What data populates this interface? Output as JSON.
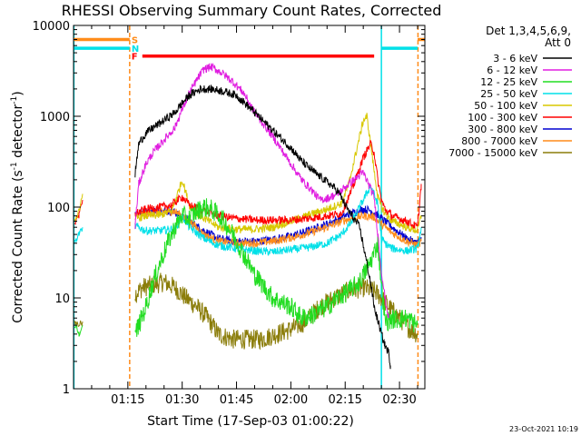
{
  "chart_data": {
    "type": "line",
    "title": "RHESSI Observing Summary Count Rates, Corrected",
    "xlabel": "Start Time (17-Sep-03 01:00:22)",
    "ylabel": "Corrected Count Rate (s⁻¹ detector⁻¹)",
    "ylabel_main": "Corrected Count Rate (s",
    "ylabel_mid": " detector",
    "ylabel_end": ")",
    "ylabel_sup": "-1",
    "footer": "23-Oct-2021 10:19",
    "y_scale": "log",
    "ylim": [
      1,
      10000
    ],
    "xlim_minutes": [
      0,
      97
    ],
    "x_tick_minutes": [
      15,
      30,
      45,
      60,
      75,
      90
    ],
    "x_tick_labels": [
      "01:15",
      "01:30",
      "01:45",
      "02:00",
      "02:15",
      "02:30"
    ],
    "y_tick_values": [
      1,
      10,
      100,
      1000,
      10000
    ],
    "y_tick_labels": [
      "1",
      "10",
      "100",
      "1000",
      "10000"
    ],
    "legend": {
      "header_line1": "Det 1,3,4,5,6,9,",
      "header_line2": "Att 0",
      "placement": "outside-right",
      "entries": [
        {
          "label": "3 - 6 keV",
          "color": "#000000"
        },
        {
          "label": "6 - 12 keV",
          "color": "#e01ee0"
        },
        {
          "label": "12 - 25 keV",
          "color": "#22dd22"
        },
        {
          "label": "25 - 50 keV",
          "color": "#00e0e8"
        },
        {
          "label": "50 - 100 keV",
          "color": "#d8c800"
        },
        {
          "label": "100 - 300 keV",
          "color": "#ff0000"
        },
        {
          "label": "300 - 800 keV",
          "color": "#0000d0"
        },
        {
          "label": "800 - 7000 keV",
          "color": "#ff8c1a"
        },
        {
          "label": "7000 - 15000 keV",
          "color": "#8b7d0a"
        }
      ]
    },
    "flags": [
      {
        "letter": "S",
        "color": "#ff8c1a",
        "value": 7000,
        "segments": [
          [
            0,
            15.5
          ],
          [
            95,
            97
          ]
        ]
      },
      {
        "letter": "N",
        "color": "#00e0e8",
        "value": 5600,
        "segments": [
          [
            0,
            15.5
          ],
          [
            85,
            95
          ]
        ]
      },
      {
        "letter": "F",
        "color": "#ff0000",
        "value": 4600,
        "segments": [
          [
            19,
            83
          ]
        ]
      }
    ],
    "vlines": [
      {
        "minute": 0.1,
        "color": "#00e0e8",
        "style": "solid"
      },
      {
        "minute": 15.5,
        "color": "#ff8c1a",
        "style": "dashed"
      },
      {
        "minute": 85,
        "color": "#00e0e8",
        "style": "solid"
      },
      {
        "minute": 95.1,
        "color": "#ff8c1a",
        "style": "dashed"
      }
    ],
    "series": [
      {
        "name": "3 - 6 keV",
        "color": "#000000",
        "x": [
          17,
          18,
          20,
          22,
          25,
          28,
          30,
          32,
          35,
          38,
          41,
          45,
          50,
          55,
          60,
          63,
          66,
          70,
          73,
          76,
          79,
          80,
          82,
          83,
          85,
          86,
          87,
          87.5
        ],
        "y": [
          230,
          500,
          650,
          750,
          900,
          1100,
          1400,
          1700,
          2000,
          2000,
          1900,
          1700,
          1100,
          700,
          450,
          320,
          250,
          190,
          150,
          90,
          60,
          38,
          15,
          8,
          4,
          3,
          2.5,
          1.8
        ]
      },
      {
        "name": "6 - 12 keV",
        "color": "#e01ee0",
        "x": [
          17,
          18,
          20,
          22,
          25,
          28,
          30,
          32,
          34,
          36,
          38,
          41,
          44,
          47,
          50,
          55,
          60,
          63,
          66,
          68,
          70,
          73,
          76,
          80,
          83,
          85,
          86,
          87
        ],
        "y": [
          62,
          180,
          300,
          400,
          550,
          750,
          1200,
          1800,
          2500,
          3300,
          3500,
          3000,
          2400,
          1800,
          1100,
          600,
          300,
          200,
          150,
          120,
          125,
          140,
          180,
          240,
          130,
          20,
          10,
          6
        ]
      },
      {
        "name": "12 - 25 keV",
        "color": "#22dd22",
        "x": [
          17,
          18,
          20,
          22,
          24,
          26,
          28,
          30,
          32,
          34,
          36,
          38,
          41,
          44,
          47,
          50,
          55,
          60,
          63,
          66,
          70,
          73,
          76,
          79,
          82,
          84,
          86,
          88,
          92,
          95
        ],
        "y": [
          4,
          5,
          8,
          15,
          25,
          40,
          60,
          80,
          75,
          90,
          100,
          95,
          75,
          50,
          30,
          18,
          10,
          8,
          6,
          6.5,
          8,
          10,
          12,
          15,
          25,
          40,
          5.5,
          5.8,
          6,
          5
        ]
      },
      {
        "name": "25 - 50 keV",
        "color": "#00e0e8",
        "x": [
          17,
          20,
          24,
          28,
          30,
          32,
          36,
          40,
          45,
          50,
          55,
          60,
          65,
          70,
          74,
          77,
          80,
          82,
          84,
          85,
          86,
          88,
          92,
          95,
          96
        ],
        "y": [
          62,
          55,
          55,
          58,
          80,
          60,
          45,
          38,
          35,
          33,
          32,
          34,
          36,
          40,
          50,
          70,
          120,
          170,
          110,
          45,
          40,
          35,
          33,
          35,
          60
        ]
      },
      {
        "name": "50 - 100 keV",
        "color": "#d8c800",
        "x": [
          17,
          20,
          24,
          27,
          28,
          30,
          32,
          35,
          40,
          45,
          50,
          55,
          60,
          65,
          70,
          74,
          76,
          78,
          80,
          81,
          82,
          83,
          84,
          85,
          86,
          88,
          92,
          95,
          96
        ],
        "y": [
          75,
          80,
          82,
          90,
          115,
          200,
          105,
          80,
          60,
          57,
          57,
          60,
          70,
          82,
          95,
          110,
          180,
          400,
          900,
          1000,
          500,
          250,
          130,
          100,
          85,
          70,
          60,
          55,
          80
        ]
      },
      {
        "name": "100 - 300 keV",
        "color": "#ff0000",
        "x": [
          17,
          20,
          24,
          27,
          30,
          32,
          35,
          40,
          45,
          50,
          55,
          60,
          65,
          70,
          74,
          77,
          80,
          82,
          83,
          84,
          85,
          86,
          88,
          92,
          95,
          96
        ],
        "y": [
          85,
          95,
          100,
          105,
          130,
          105,
          95,
          80,
          75,
          72,
          72,
          72,
          75,
          80,
          85,
          160,
          350,
          500,
          400,
          200,
          120,
          95,
          80,
          70,
          60,
          180
        ]
      },
      {
        "name": "300 - 800 keV",
        "color": "#0000d0",
        "x": [
          17,
          20,
          24,
          28,
          32,
          36,
          40,
          45,
          50,
          55,
          60,
          65,
          70,
          75,
          80,
          82,
          85,
          88,
          92,
          95,
          96
        ],
        "y": [
          85,
          90,
          92,
          88,
          70,
          55,
          45,
          42,
          42,
          44,
          48,
          55,
          65,
          80,
          95,
          92,
          75,
          60,
          45,
          40,
          45
        ]
      },
      {
        "name": "800 - 7000 keV",
        "color": "#ff8c1a",
        "x": [
          17,
          20,
          24,
          28,
          32,
          36,
          40,
          45,
          50,
          55,
          60,
          65,
          70,
          75,
          80,
          83,
          85,
          88,
          92,
          95,
          96
        ],
        "y": [
          80,
          85,
          88,
          90,
          70,
          50,
          42,
          40,
          40,
          42,
          46,
          52,
          60,
          72,
          80,
          78,
          65,
          52,
          42,
          38,
          42
        ]
      },
      {
        "name": "7000 - 15000 keV",
        "color": "#8b7d0a",
        "x": [
          17,
          19,
          22,
          25,
          28,
          31,
          34,
          37,
          40,
          44,
          48,
          52,
          56,
          60,
          64,
          68,
          72,
          76,
          80,
          83,
          85,
          87,
          90,
          93,
          95
        ],
        "y": [
          11,
          13,
          14,
          15,
          13,
          10,
          8,
          6,
          4,
          3.5,
          3.5,
          3.5,
          4,
          4.5,
          5.5,
          8,
          10,
          12,
          13,
          12,
          10,
          8,
          6,
          4.5,
          4
        ]
      }
    ],
    "pre_gap_segments": [
      {
        "color": "#ff0000",
        "x": [
          0.3,
          1.5,
          2.5
        ],
        "y": [
          65,
          80,
          120
        ]
      },
      {
        "color": "#d8c800",
        "x": [
          0.3,
          1.5,
          2.5
        ],
        "y": [
          70,
          90,
          140
        ]
      },
      {
        "color": "#22dd22",
        "x": [
          0.3,
          1.5,
          2.5
        ],
        "y": [
          5,
          4,
          5
        ]
      },
      {
        "color": "#00e0e8",
        "x": [
          0.3,
          1.5,
          2.5
        ],
        "y": [
          40,
          50,
          60
        ]
      },
      {
        "color": "#8b7d0a",
        "x": [
          0.3,
          1.5,
          2.5
        ],
        "y": [
          5.5,
          5,
          5.5
        ]
      }
    ]
  }
}
